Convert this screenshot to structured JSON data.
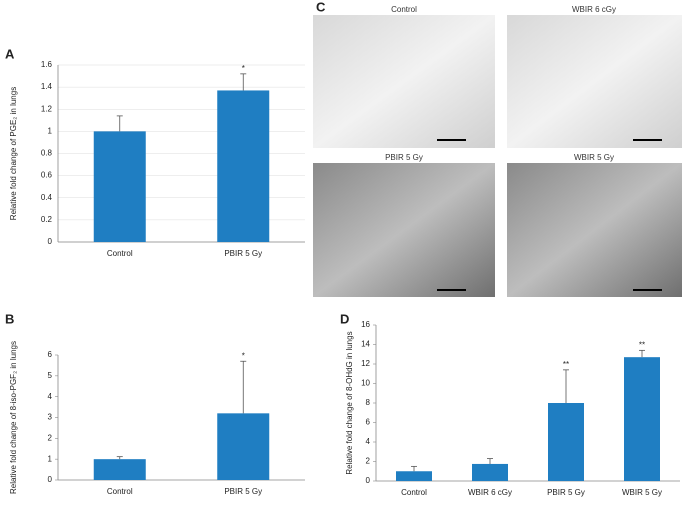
{
  "chart_data": [
    {
      "type": "bar",
      "panel": "A",
      "y_label": "Relative fold change of PGE₂ in lungs",
      "categories": [
        "Control",
        "PBIR 5 Gy"
      ],
      "values": [
        1.0,
        1.37
      ],
      "errors": [
        0.14,
        0.15
      ],
      "annotations": [
        null,
        "*"
      ],
      "color": "#1f7ec2",
      "ylim": [
        0,
        1.6
      ],
      "yticks": [
        0,
        0.2,
        0.4,
        0.6,
        0.8,
        1,
        1.2,
        1.4,
        1.6
      ],
      "grid": true
    },
    {
      "type": "bar",
      "panel": "B",
      "y_label": "Relative fold change of 8-iso-PGF₂ in lungs",
      "categories": [
        "Control",
        "PBIR 5 Gy"
      ],
      "values": [
        1.0,
        3.2
      ],
      "errors": [
        0.12,
        2.5
      ],
      "annotations": [
        null,
        "*"
      ],
      "color": "#1f7ec2",
      "ylim": [
        0,
        6
      ],
      "yticks": [
        0,
        1,
        2,
        3,
        4,
        5,
        6
      ],
      "grid": false
    },
    {
      "type": "bar",
      "panel": "D",
      "y_label": "Relative fold change of 8-OHdG in lungs",
      "categories": [
        "Control",
        "WBIR 6 cGy",
        "PBIR 5 Gy",
        "WBIR 5 Gy"
      ],
      "values": [
        1.0,
        1.75,
        8.0,
        12.7
      ],
      "errors": [
        0.5,
        0.55,
        3.4,
        0.7
      ],
      "annotations": [
        null,
        null,
        "**",
        "**"
      ],
      "color": "#1f7ec2",
      "ylim": [
        0,
        16
      ],
      "yticks": [
        0,
        2,
        4,
        6,
        8,
        10,
        12,
        14,
        16
      ],
      "grid": false
    }
  ],
  "panel_c": {
    "panel": "C",
    "images": [
      {
        "label": "Control"
      },
      {
        "label": "WBIR 6 cGy"
      },
      {
        "label": "PBIR 5 Gy"
      },
      {
        "label": "WBIR 5 Gy"
      }
    ]
  }
}
